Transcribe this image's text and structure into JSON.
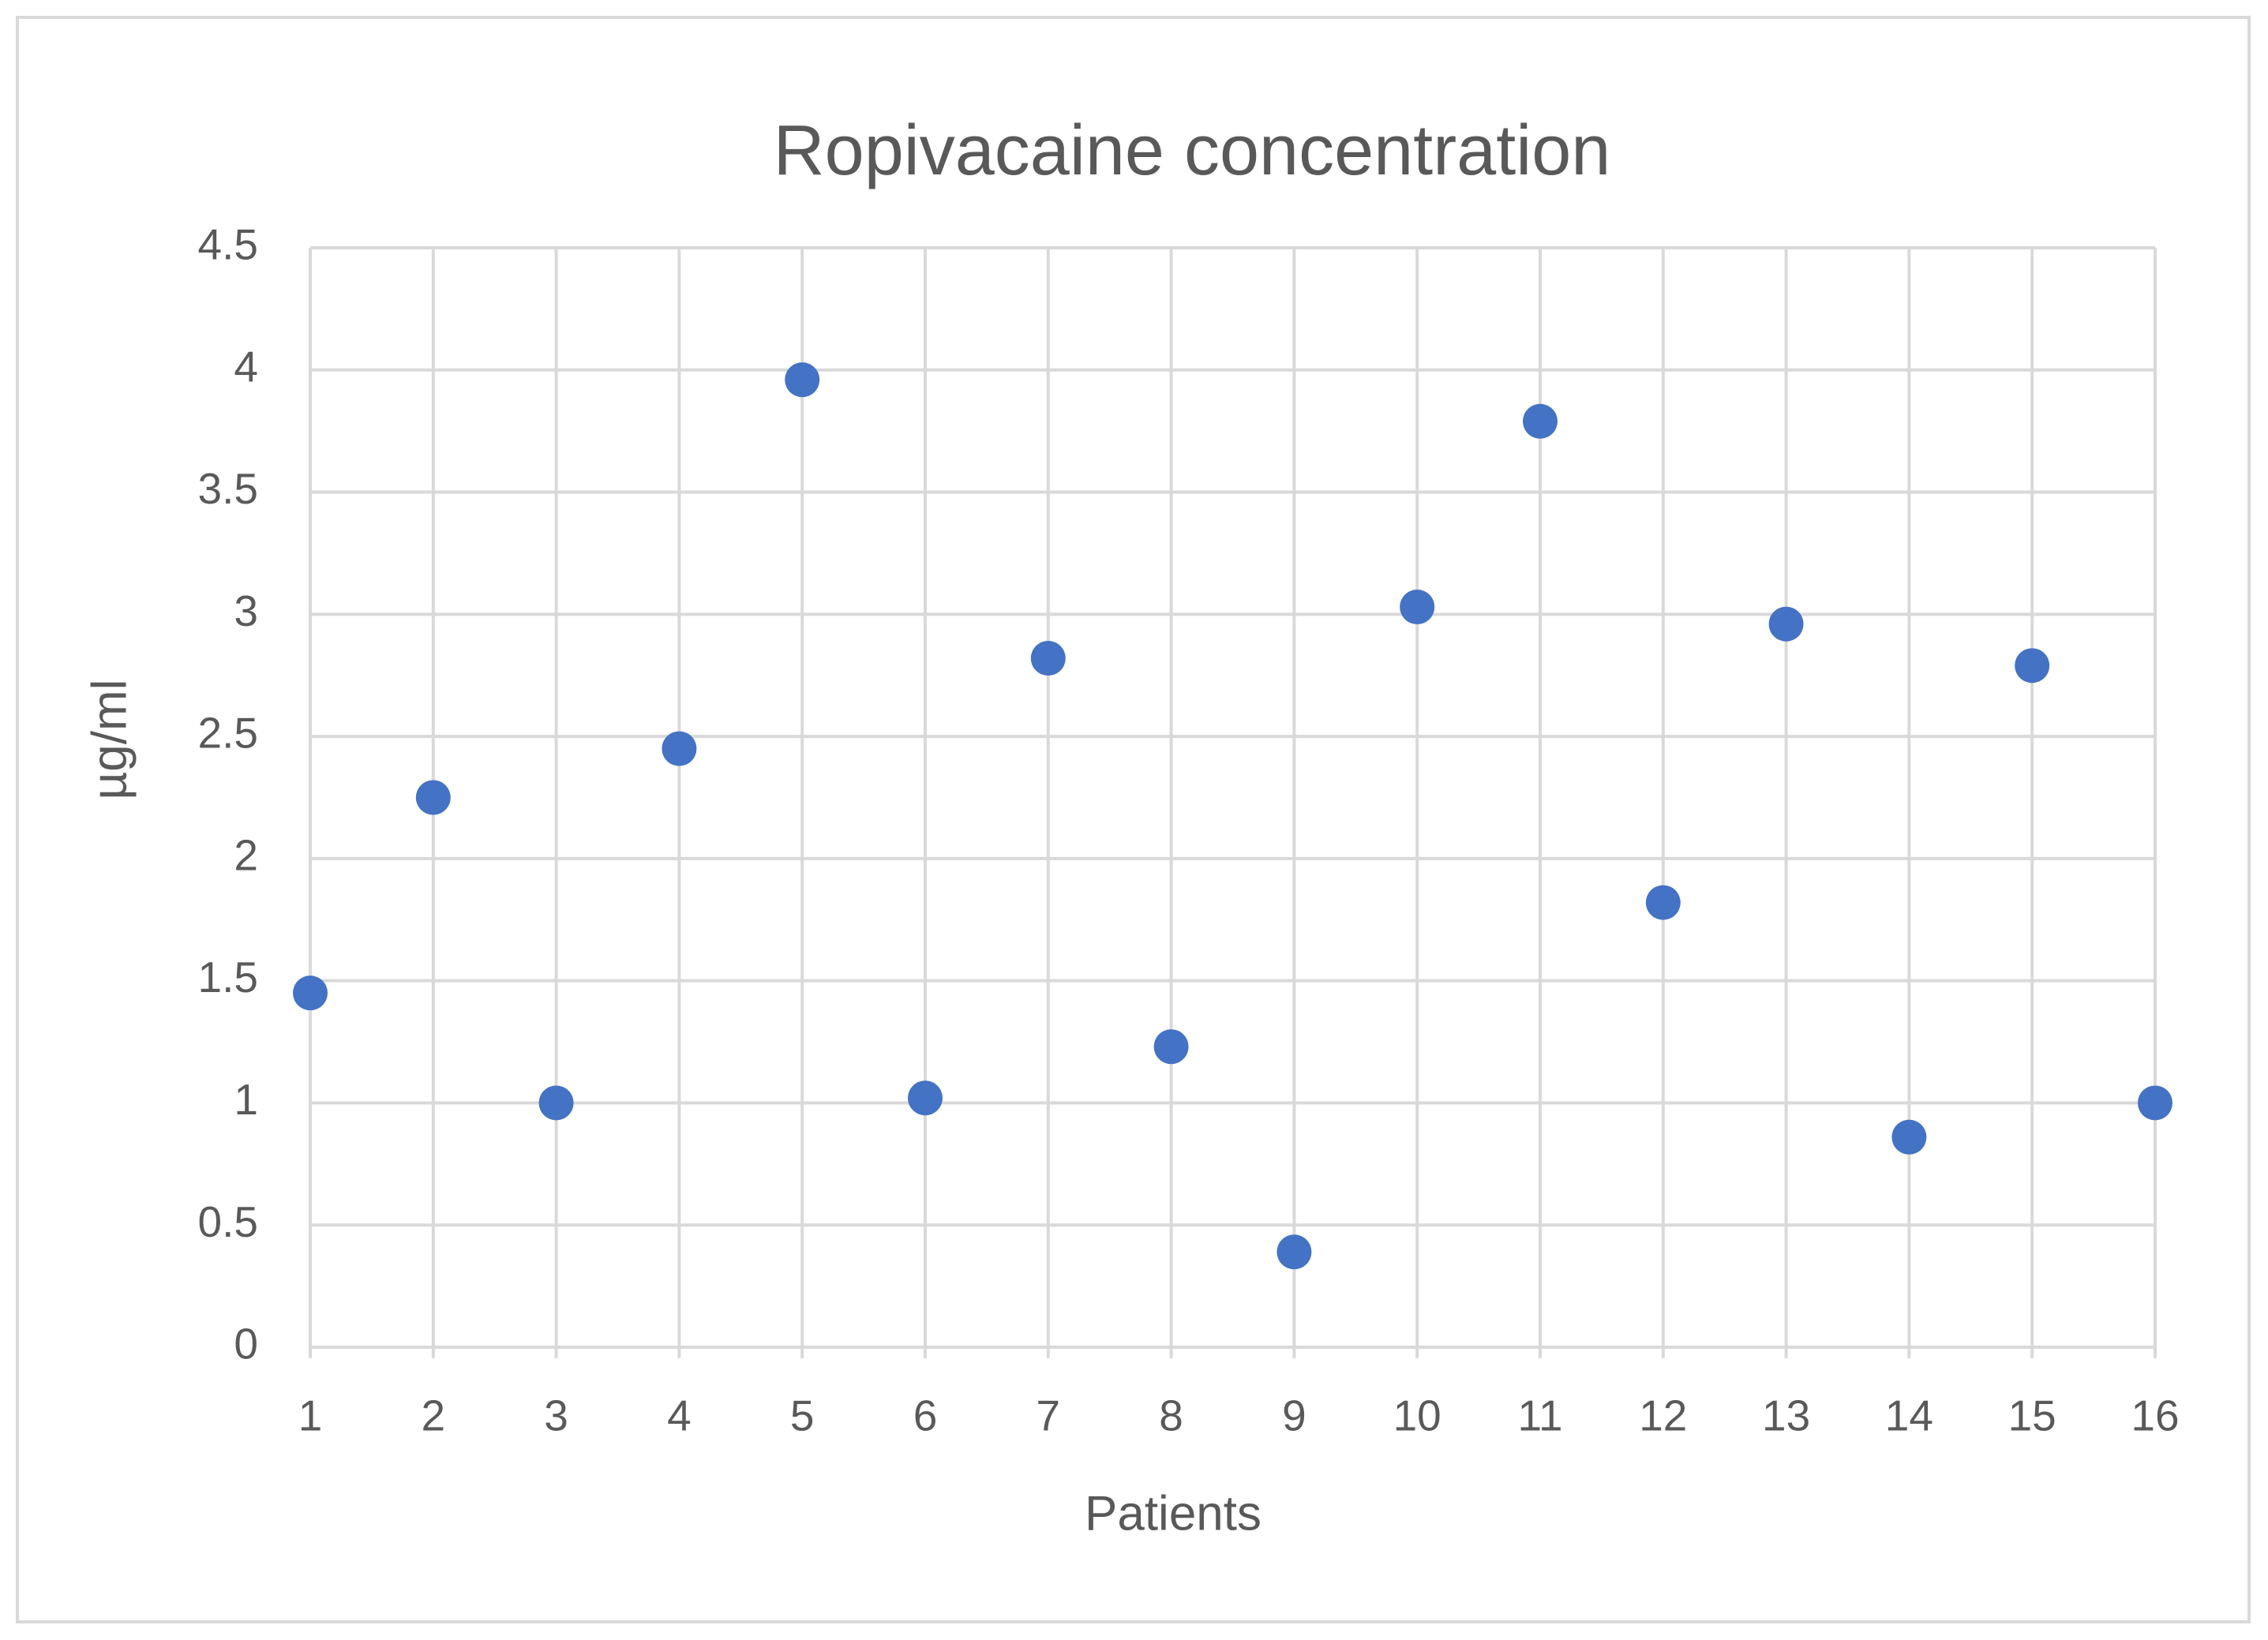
{
  "chart_data": {
    "type": "scatter",
    "title": "Ropivacaine concentration",
    "x_label": "Patients",
    "y_label": "µg/ml",
    "series": [
      {
        "color": "#4472c4",
        "x": [
          1,
          2,
          3,
          4,
          5,
          6,
          7,
          8,
          9,
          10,
          11,
          12,
          13,
          14,
          15,
          16
        ],
        "values": [
          1.45,
          2.25,
          1.0,
          2.45,
          3.96,
          1.02,
          2.82,
          1.23,
          0.39,
          3.03,
          3.79,
          1.82,
          2.96,
          0.86,
          2.79,
          1.0
        ]
      }
    ],
    "xlim": [
      1,
      16
    ],
    "xticks": [
      1,
      2,
      3,
      4,
      5,
      6,
      7,
      8,
      9,
      10,
      11,
      12,
      13,
      14,
      15,
      16
    ],
    "ylim": [
      0,
      4.5
    ],
    "yticks": [
      0,
      0.5,
      1,
      1.5,
      2,
      2.5,
      3,
      3.5,
      4,
      4.5
    ],
    "grid": true
  }
}
